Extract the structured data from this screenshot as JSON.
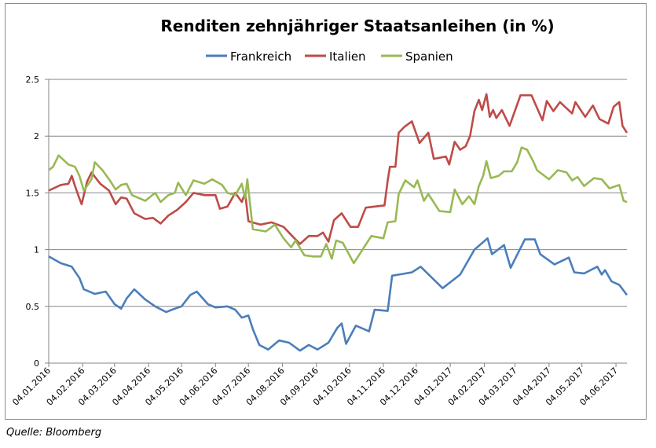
{
  "chart_data": {
    "type": "line",
    "title": "Renditen zehnjähriger Staatsanleihen (in %)",
    "xlabel": "",
    "ylabel": "",
    "ylim": [
      0,
      2.5
    ],
    "yticks": [
      0,
      0.5,
      1,
      1.5,
      2,
      2.5
    ],
    "ytick_labels": [
      "0",
      "0.5",
      "1",
      "1.5",
      "2",
      "2.5"
    ],
    "xlim": [
      "2016-01-04",
      "2017-06-14"
    ],
    "xticks": [
      "2016-01-04",
      "2016-02-04",
      "2016-03-04",
      "2016-04-04",
      "2016-05-04",
      "2016-06-04",
      "2016-07-04",
      "2016-08-04",
      "2016-09-04",
      "2016-10-04",
      "2016-11-04",
      "2016-12-04",
      "2017-01-04",
      "2017-02-04",
      "2017-03-04",
      "2017-04-04",
      "2017-05-04",
      "2017-06-04"
    ],
    "xtick_labels": [
      "04.01.2016",
      "04.02.2016",
      "04.03.2016",
      "04.04.2016",
      "04.05.2016",
      "04.06.2016",
      "04.07.2016",
      "04.08.2016",
      "04.09.2016",
      "04.10.2016",
      "04.11.2016",
      "04.12.2016",
      "04.01.2017",
      "04.02.2017",
      "04.03.2017",
      "04.04.2017",
      "04.05.2017",
      "04.06.2017"
    ],
    "grid": "horizontal",
    "legend_placement": "top",
    "series": [
      {
        "name": "Frankreich",
        "color": "#4a7ebb",
        "points": [
          [
            "2016-01-04",
            0.94
          ],
          [
            "2016-01-15",
            0.88
          ],
          [
            "2016-01-25",
            0.85
          ],
          [
            "2016-02-01",
            0.75
          ],
          [
            "2016-02-05",
            0.65
          ],
          [
            "2016-02-15",
            0.61
          ],
          [
            "2016-02-25",
            0.63
          ],
          [
            "2016-03-04",
            0.52
          ],
          [
            "2016-03-10",
            0.48
          ],
          [
            "2016-03-15",
            0.57
          ],
          [
            "2016-03-22",
            0.65
          ],
          [
            "2016-04-01",
            0.56
          ],
          [
            "2016-04-10",
            0.5
          ],
          [
            "2016-04-20",
            0.45
          ],
          [
            "2016-04-28",
            0.48
          ],
          [
            "2016-05-04",
            0.5
          ],
          [
            "2016-05-12",
            0.6
          ],
          [
            "2016-05-18",
            0.63
          ],
          [
            "2016-05-28",
            0.52
          ],
          [
            "2016-06-04",
            0.49
          ],
          [
            "2016-06-15",
            0.5
          ],
          [
            "2016-06-22",
            0.47
          ],
          [
            "2016-06-28",
            0.4
          ],
          [
            "2016-07-04",
            0.42
          ],
          [
            "2016-07-08",
            0.3
          ],
          [
            "2016-07-14",
            0.16
          ],
          [
            "2016-07-22",
            0.12
          ],
          [
            "2016-08-01",
            0.2
          ],
          [
            "2016-08-10",
            0.18
          ],
          [
            "2016-08-20",
            0.11
          ],
          [
            "2016-08-28",
            0.16
          ],
          [
            "2016-09-05",
            0.12
          ],
          [
            "2016-09-15",
            0.18
          ],
          [
            "2016-09-23",
            0.31
          ],
          [
            "2016-09-27",
            0.35
          ],
          [
            "2016-10-01",
            0.17
          ],
          [
            "2016-10-10",
            0.33
          ],
          [
            "2016-10-22",
            0.28
          ],
          [
            "2016-10-27",
            0.47
          ],
          [
            "2016-11-08",
            0.46
          ],
          [
            "2016-11-12",
            0.77
          ],
          [
            "2016-11-30",
            0.8
          ],
          [
            "2016-12-08",
            0.85
          ],
          [
            "2016-12-28",
            0.66
          ],
          [
            "2017-01-13",
            0.78
          ],
          [
            "2017-01-26",
            1.0
          ],
          [
            "2017-02-07",
            1.1
          ],
          [
            "2017-02-11",
            0.96
          ],
          [
            "2017-02-22",
            1.04
          ],
          [
            "2017-02-28",
            0.84
          ],
          [
            "2017-03-13",
            1.09
          ],
          [
            "2017-03-22",
            1.09
          ],
          [
            "2017-03-27",
            0.96
          ],
          [
            "2017-04-09",
            0.87
          ],
          [
            "2017-04-22",
            0.93
          ],
          [
            "2017-04-27",
            0.8
          ],
          [
            "2017-05-06",
            0.79
          ],
          [
            "2017-05-18",
            0.85
          ],
          [
            "2017-05-22",
            0.78
          ],
          [
            "2017-05-25",
            0.82
          ],
          [
            "2017-05-31",
            0.72
          ],
          [
            "2017-06-07",
            0.69
          ],
          [
            "2017-06-14",
            0.6
          ]
        ]
      },
      {
        "name": "Italien",
        "color": "#be4b48",
        "points": [
          [
            "2016-01-04",
            1.52
          ],
          [
            "2016-01-15",
            1.57
          ],
          [
            "2016-01-22",
            1.58
          ],
          [
            "2016-01-25",
            1.65
          ],
          [
            "2016-01-28",
            1.56
          ],
          [
            "2016-02-01",
            1.45
          ],
          [
            "2016-02-03",
            1.4
          ],
          [
            "2016-02-08",
            1.6
          ],
          [
            "2016-02-12",
            1.68
          ],
          [
            "2016-02-20",
            1.58
          ],
          [
            "2016-02-28",
            1.52
          ],
          [
            "2016-03-05",
            1.4
          ],
          [
            "2016-03-10",
            1.46
          ],
          [
            "2016-03-15",
            1.45
          ],
          [
            "2016-03-22",
            1.32
          ],
          [
            "2016-04-01",
            1.27
          ],
          [
            "2016-04-08",
            1.28
          ],
          [
            "2016-04-15",
            1.23
          ],
          [
            "2016-04-22",
            1.3
          ],
          [
            "2016-04-30",
            1.35
          ],
          [
            "2016-05-08",
            1.42
          ],
          [
            "2016-05-15",
            1.5
          ],
          [
            "2016-05-25",
            1.48
          ],
          [
            "2016-06-04",
            1.48
          ],
          [
            "2016-06-08",
            1.36
          ],
          [
            "2016-06-15",
            1.38
          ],
          [
            "2016-06-22",
            1.5
          ],
          [
            "2016-06-28",
            1.42
          ],
          [
            "2016-07-01",
            1.5
          ],
          [
            "2016-07-04",
            1.25
          ],
          [
            "2016-07-15",
            1.22
          ],
          [
            "2016-07-25",
            1.24
          ],
          [
            "2016-08-05",
            1.2
          ],
          [
            "2016-08-15",
            1.1
          ],
          [
            "2016-08-20",
            1.05
          ],
          [
            "2016-08-28",
            1.12
          ],
          [
            "2016-09-05",
            1.12
          ],
          [
            "2016-09-10",
            1.15
          ],
          [
            "2016-09-15",
            1.07
          ],
          [
            "2016-09-20",
            1.26
          ],
          [
            "2016-09-27",
            1.32
          ],
          [
            "2016-10-05",
            1.2
          ],
          [
            "2016-10-12",
            1.2
          ],
          [
            "2016-10-19",
            1.37
          ],
          [
            "2016-11-05",
            1.39
          ],
          [
            "2016-11-08",
            1.61
          ],
          [
            "2016-11-10",
            1.73
          ],
          [
            "2016-11-15",
            1.73
          ],
          [
            "2016-11-18",
            2.03
          ],
          [
            "2016-11-23",
            2.08
          ],
          [
            "2016-11-30",
            2.13
          ],
          [
            "2016-12-07",
            1.94
          ],
          [
            "2016-12-15",
            2.03
          ],
          [
            "2016-12-20",
            1.8
          ],
          [
            "2016-12-31",
            1.82
          ],
          [
            "2017-01-03",
            1.75
          ],
          [
            "2017-01-08",
            1.95
          ],
          [
            "2017-01-13",
            1.88
          ],
          [
            "2017-01-18",
            1.91
          ],
          [
            "2017-01-22",
            2.0
          ],
          [
            "2017-01-26",
            2.22
          ],
          [
            "2017-01-30",
            2.32
          ],
          [
            "2017-02-02",
            2.23
          ],
          [
            "2017-02-06",
            2.37
          ],
          [
            "2017-02-09",
            2.17
          ],
          [
            "2017-02-12",
            2.23
          ],
          [
            "2017-02-15",
            2.16
          ],
          [
            "2017-02-20",
            2.23
          ],
          [
            "2017-02-27",
            2.09
          ],
          [
            "2017-03-09",
            2.36
          ],
          [
            "2017-03-19",
            2.36
          ],
          [
            "2017-03-29",
            2.14
          ],
          [
            "2017-04-02",
            2.31
          ],
          [
            "2017-04-08",
            2.22
          ],
          [
            "2017-04-14",
            2.3
          ],
          [
            "2017-04-25",
            2.2
          ],
          [
            "2017-04-28",
            2.3
          ],
          [
            "2017-05-07",
            2.17
          ],
          [
            "2017-05-14",
            2.27
          ],
          [
            "2017-05-20",
            2.15
          ],
          [
            "2017-05-28",
            2.11
          ],
          [
            "2017-06-02",
            2.26
          ],
          [
            "2017-06-07",
            2.3
          ],
          [
            "2017-06-10",
            2.09
          ],
          [
            "2017-06-14",
            2.03
          ]
        ]
      },
      {
        "name": "Spanien",
        "color": "#98b954",
        "points": [
          [
            "2016-01-04",
            1.7
          ],
          [
            "2016-01-08",
            1.73
          ],
          [
            "2016-01-13",
            1.83
          ],
          [
            "2016-01-22",
            1.75
          ],
          [
            "2016-01-28",
            1.73
          ],
          [
            "2016-02-01",
            1.65
          ],
          [
            "2016-02-05",
            1.52
          ],
          [
            "2016-02-12",
            1.62
          ],
          [
            "2016-02-15",
            1.77
          ],
          [
            "2016-02-22",
            1.7
          ],
          [
            "2016-02-28",
            1.62
          ],
          [
            "2016-03-05",
            1.53
          ],
          [
            "2016-03-10",
            1.57
          ],
          [
            "2016-03-15",
            1.58
          ],
          [
            "2016-03-20",
            1.48
          ],
          [
            "2016-04-01",
            1.43
          ],
          [
            "2016-04-10",
            1.5
          ],
          [
            "2016-04-15",
            1.42
          ],
          [
            "2016-04-22",
            1.48
          ],
          [
            "2016-04-28",
            1.5
          ],
          [
            "2016-05-01",
            1.59
          ],
          [
            "2016-05-08",
            1.48
          ],
          [
            "2016-05-15",
            1.61
          ],
          [
            "2016-05-25",
            1.58
          ],
          [
            "2016-06-01",
            1.62
          ],
          [
            "2016-06-10",
            1.57
          ],
          [
            "2016-06-15",
            1.5
          ],
          [
            "2016-06-22",
            1.48
          ],
          [
            "2016-06-28",
            1.58
          ],
          [
            "2016-07-01",
            1.45
          ],
          [
            "2016-07-03",
            1.62
          ],
          [
            "2016-07-08",
            1.18
          ],
          [
            "2016-07-20",
            1.16
          ],
          [
            "2016-07-28",
            1.22
          ],
          [
            "2016-08-05",
            1.1
          ],
          [
            "2016-08-12",
            1.02
          ],
          [
            "2016-08-16",
            1.08
          ],
          [
            "2016-08-24",
            0.95
          ],
          [
            "2016-09-01",
            0.94
          ],
          [
            "2016-09-08",
            0.94
          ],
          [
            "2016-09-13",
            1.05
          ],
          [
            "2016-09-18",
            0.92
          ],
          [
            "2016-09-22",
            1.08
          ],
          [
            "2016-09-28",
            1.06
          ],
          [
            "2016-10-08",
            0.88
          ],
          [
            "2016-10-18",
            1.03
          ],
          [
            "2016-10-24",
            1.12
          ],
          [
            "2016-11-04",
            1.1
          ],
          [
            "2016-11-08",
            1.24
          ],
          [
            "2016-11-15",
            1.25
          ],
          [
            "2016-11-18",
            1.49
          ],
          [
            "2016-11-24",
            1.61
          ],
          [
            "2016-12-02",
            1.55
          ],
          [
            "2016-12-05",
            1.61
          ],
          [
            "2016-12-11",
            1.43
          ],
          [
            "2016-12-15",
            1.49
          ],
          [
            "2016-12-25",
            1.34
          ],
          [
            "2017-01-04",
            1.33
          ],
          [
            "2017-01-08",
            1.53
          ],
          [
            "2017-01-15",
            1.4
          ],
          [
            "2017-01-21",
            1.47
          ],
          [
            "2017-01-26",
            1.4
          ],
          [
            "2017-01-30",
            1.56
          ],
          [
            "2017-02-03",
            1.65
          ],
          [
            "2017-02-06",
            1.78
          ],
          [
            "2017-02-10",
            1.63
          ],
          [
            "2017-02-17",
            1.65
          ],
          [
            "2017-02-22",
            1.69
          ],
          [
            "2017-03-01",
            1.69
          ],
          [
            "2017-03-06",
            1.77
          ],
          [
            "2017-03-10",
            1.9
          ],
          [
            "2017-03-15",
            1.88
          ],
          [
            "2017-03-21",
            1.77
          ],
          [
            "2017-03-24",
            1.7
          ],
          [
            "2017-04-04",
            1.62
          ],
          [
            "2017-04-12",
            1.7
          ],
          [
            "2017-04-20",
            1.68
          ],
          [
            "2017-04-25",
            1.61
          ],
          [
            "2017-04-30",
            1.64
          ],
          [
            "2017-05-06",
            1.56
          ],
          [
            "2017-05-15",
            1.63
          ],
          [
            "2017-05-22",
            1.62
          ],
          [
            "2017-05-29",
            1.54
          ],
          [
            "2017-06-07",
            1.57
          ],
          [
            "2017-06-11",
            1.43
          ],
          [
            "2017-06-14",
            1.42
          ]
        ]
      }
    ]
  },
  "source": "Quelle: Bloomberg"
}
